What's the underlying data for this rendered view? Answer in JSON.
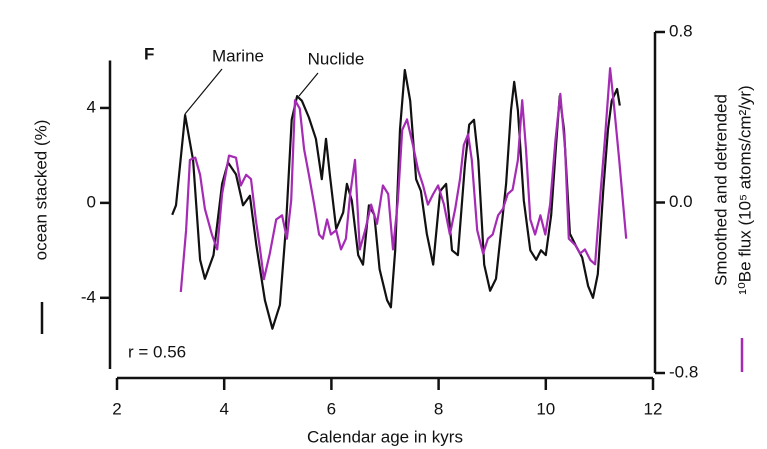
{
  "chart_data": {
    "type": "line",
    "panel": "F",
    "ylabel": "ocean stacked (%)",
    "y2label": [
      "Smoothed and detrended",
      "¹⁰Be flux (10⁵ atoms/cm²/yr)"
    ],
    "xlabel": "Calendar age in kyrs",
    "annotation": "r = 0.56",
    "xlim": [
      2,
      12
    ],
    "xticks": [
      2,
      4,
      6,
      8,
      10,
      12
    ],
    "ylim": [
      -7,
      6
    ],
    "yticks": [
      -4,
      0,
      4
    ],
    "y2lim": [
      -0.8,
      0.8
    ],
    "y2ticks": [
      -0.8,
      {
        "value": 0,
        "label": "0.0"
      },
      0.8
    ],
    "series": [
      {
        "name": "Marine",
        "color": "#111111",
        "axis": "y",
        "x": [
          3.03,
          3.1,
          3.27,
          3.42,
          3.55,
          3.64,
          3.8,
          3.96,
          4.07,
          4.22,
          4.35,
          4.48,
          4.6,
          4.76,
          4.9,
          5.04,
          5.15,
          5.26,
          5.36,
          5.45,
          5.58,
          5.71,
          5.82,
          5.9,
          5.97,
          6.09,
          6.22,
          6.29,
          6.38,
          6.5,
          6.59,
          6.7,
          6.8,
          6.9,
          7.04,
          7.11,
          7.19,
          7.28,
          7.37,
          7.47,
          7.58,
          7.67,
          7.78,
          7.9,
          8.03,
          8.14,
          8.25,
          8.36,
          8.49,
          8.57,
          8.66,
          8.74,
          8.85,
          8.96,
          9.07,
          9.18,
          9.26,
          9.35,
          9.41,
          9.48,
          9.59,
          9.71,
          9.82,
          9.91,
          10.0,
          10.1,
          10.19,
          10.26,
          10.34,
          10.45,
          10.56,
          10.68,
          10.79,
          10.88,
          10.97,
          11.07,
          11.16,
          11.23,
          11.33,
          11.38
        ],
        "values": [
          -0.5,
          -0.1,
          3.7,
          1.8,
          -2.4,
          -3.2,
          -2.2,
          0.8,
          1.7,
          1.2,
          -0.1,
          0.3,
          -1.8,
          -4.1,
          -5.3,
          -4.3,
          -1.1,
          3.5,
          4.5,
          4.3,
          3.6,
          2.7,
          1.0,
          2.7,
          1.2,
          -1.1,
          -0.4,
          0.8,
          0.1,
          -2.2,
          -2.6,
          -0.1,
          -0.5,
          -2.8,
          -4.1,
          -4.4,
          -2.0,
          3.1,
          5.6,
          4.3,
          1.0,
          0.5,
          -1.3,
          -2.6,
          0.5,
          0.8,
          -2.0,
          -2.2,
          1.6,
          3.3,
          3.5,
          1.8,
          -2.6,
          -3.7,
          -3.2,
          -0.9,
          0.8,
          3.9,
          5.1,
          3.9,
          0.1,
          -2.0,
          -2.4,
          -2.0,
          -2.2,
          -0.5,
          2.4,
          4.5,
          3.1,
          -1.3,
          -1.8,
          -2.3,
          -3.5,
          -4.0,
          -3.0,
          0.5,
          3.1,
          4.3,
          4.8,
          4.1
        ]
      },
      {
        "name": "Nuclide",
        "color": "#a52bb5",
        "axis": "y2",
        "x": [
          3.19,
          3.29,
          3.36,
          3.46,
          3.55,
          3.64,
          3.77,
          3.87,
          3.96,
          4.09,
          4.22,
          4.31,
          4.41,
          4.5,
          4.59,
          4.67,
          4.74,
          4.85,
          4.97,
          5.08,
          5.17,
          5.25,
          5.32,
          5.41,
          5.49,
          5.58,
          5.68,
          5.77,
          5.84,
          5.92,
          5.99,
          6.09,
          6.18,
          6.27,
          6.35,
          6.44,
          6.53,
          6.63,
          6.74,
          6.85,
          6.96,
          7.06,
          7.15,
          7.24,
          7.32,
          7.41,
          7.52,
          7.62,
          7.71,
          7.8,
          7.9,
          7.99,
          8.1,
          8.21,
          8.31,
          8.4,
          8.47,
          8.55,
          8.62,
          8.72,
          8.83,
          8.92,
          9.01,
          9.11,
          9.2,
          9.29,
          9.38,
          9.48,
          9.56,
          9.63,
          9.71,
          9.8,
          9.9,
          9.99,
          10.08,
          10.18,
          10.27,
          10.36,
          10.43,
          10.55,
          10.64,
          10.73,
          10.83,
          10.92,
          11.01,
          11.1,
          11.2,
          11.27,
          11.37,
          11.5
        ],
        "values": [
          -0.42,
          -0.13,
          0.2,
          0.21,
          0.13,
          -0.03,
          -0.15,
          -0.22,
          0.04,
          0.22,
          0.21,
          0.08,
          0.13,
          0.11,
          -0.08,
          -0.22,
          -0.36,
          -0.24,
          -0.08,
          -0.06,
          -0.17,
          0.01,
          0.48,
          0.44,
          0.25,
          0.13,
          -0.01,
          -0.15,
          -0.17,
          -0.08,
          -0.15,
          -0.13,
          -0.22,
          -0.17,
          0.04,
          0.2,
          -0.22,
          -0.13,
          -0.01,
          -0.1,
          0.08,
          0.04,
          -0.22,
          0.01,
          0.34,
          0.39,
          0.27,
          0.15,
          0.08,
          -0.01,
          0.04,
          0.08,
          -0.01,
          -0.15,
          -0.03,
          0.11,
          0.27,
          0.32,
          0.2,
          -0.13,
          -0.24,
          -0.17,
          -0.15,
          -0.06,
          -0.03,
          0.04,
          0.06,
          0.2,
          0.48,
          0.25,
          -0.08,
          -0.15,
          -0.06,
          -0.15,
          -0.01,
          0.29,
          0.51,
          0.25,
          -0.17,
          -0.2,
          -0.24,
          -0.22,
          -0.27,
          -0.29,
          0.01,
          0.29,
          0.63,
          0.46,
          0.2,
          -0.17
        ]
      }
    ]
  }
}
